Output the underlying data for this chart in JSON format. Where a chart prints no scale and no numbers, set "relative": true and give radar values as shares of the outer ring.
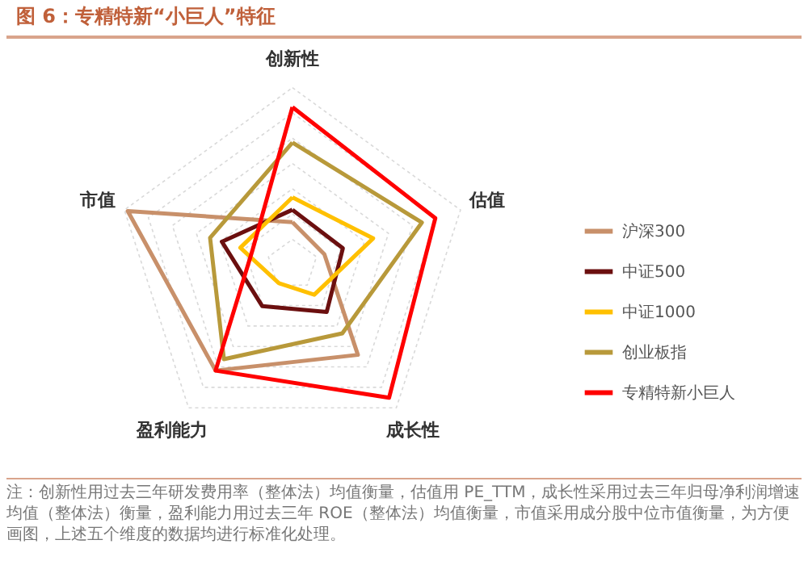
{
  "chart_data": {
    "type": "radar",
    "title": "图 6：专精特新“小巨人”特征",
    "categories": [
      "创新性",
      "估值",
      "成长性",
      "盈利能力",
      "市值"
    ],
    "relative": true,
    "grid": true,
    "legend": "right",
    "series": [
      {
        "name": "沪深300",
        "color": "#c8906a",
        "values": [
          0.24,
          0.19,
          0.63,
          0.74,
          0.98
        ]
      },
      {
        "name": "中证500",
        "color": "#6b0f0f",
        "values": [
          0.31,
          0.3,
          0.33,
          0.29,
          0.42
        ]
      },
      {
        "name": "中证1000",
        "color": "#ffc000",
        "values": [
          0.38,
          0.48,
          0.21,
          0.13,
          0.31
        ]
      },
      {
        "name": "创业板指",
        "color": "#b8993a",
        "values": [
          0.69,
          0.77,
          0.48,
          0.66,
          0.49
        ]
      },
      {
        "name": "专精特新小巨人",
        "color": "#ff0000",
        "values": [
          0.89,
          0.85,
          0.93,
          0.74,
          0.24
        ]
      }
    ],
    "annotations": [
      "注：创新性用过去三年研发费用率（整体法）均值衡量，估值用 PE_TTM，成长性采用过去三年归母净利润增速均值（整体法）衡量，盈利能力用过去三年 ROE（整体法）均值衡量，市值采用成分股中位市值衡量，为方便画图，上述五个维度的数据均进行标准化处理。"
    ]
  }
}
